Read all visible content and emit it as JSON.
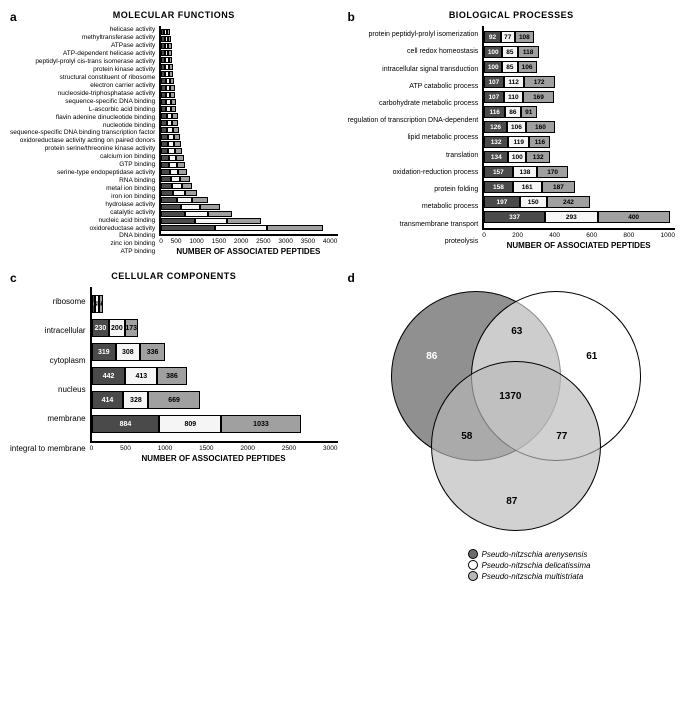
{
  "colors": {
    "s1": "#4a4a4a",
    "s2": "#f5f5f5",
    "s3": "#a0a0a0"
  },
  "panelA": {
    "label": "a",
    "title": "MOLECULAR FUNCTIONS",
    "xlabel": "NUMBER OF ASSOCIATED PEPTIDES",
    "xmax": 4000,
    "xticks": [
      0,
      500,
      1000,
      1500,
      2000,
      2500,
      3000,
      3500,
      4000
    ],
    "rows": [
      {
        "label": "helicase activity",
        "v": [
          80,
          70,
          80
        ]
      },
      {
        "label": "methyltransferase activity",
        "v": [
          85,
          75,
          85
        ]
      },
      {
        "label": "ATPase activity",
        "v": [
          90,
          80,
          90
        ]
      },
      {
        "label": "ATP-dependent helicase activity",
        "v": [
          95,
          85,
          95
        ]
      },
      {
        "label": "peptidyl-prolyl cis-trans isomerase activity",
        "v": [
          95,
          90,
          95
        ]
      },
      {
        "label": "protein kinase activity",
        "v": [
          100,
          90,
          100
        ]
      },
      {
        "label": "structural constituent of ribosome",
        "v": [
          100,
          95,
          100
        ]
      },
      {
        "label": "electron carrier activity",
        "v": [
          110,
          100,
          110
        ]
      },
      {
        "label": "nucleoside-triphosphatase activity",
        "v": [
          115,
          105,
          115
        ]
      },
      {
        "label": "sequence-specific DNA binding",
        "v": [
          120,
          110,
          120
        ]
      },
      {
        "label": "L-ascorbic acid binding",
        "v": [
          125,
          115,
          125
        ]
      },
      {
        "label": "flavin adenine dinucleotide binding",
        "v": [
          130,
          120,
          130
        ]
      },
      {
        "label": "nucleotide binding",
        "v": [
          140,
          130,
          140
        ]
      },
      {
        "label": "sequence-specific DNA binding transcription factor",
        "v": [
          145,
          135,
          145
        ]
      },
      {
        "label": "oxidoreductase activity  acting on paired donors",
        "v": [
          150,
          140,
          150
        ]
      },
      {
        "label": "protein serine/threonine kinase activity",
        "v": [
          160,
          150,
          160
        ]
      },
      {
        "label": "calcium ion binding",
        "v": [
          170,
          160,
          170
        ]
      },
      {
        "label": "GTP binding",
        "v": [
          180,
          170,
          180
        ]
      },
      {
        "label": "serine-type endopeptidase activity",
        "v": [
          190,
          180,
          190
        ]
      },
      {
        "label": "RNA binding",
        "v": [
          200,
          190,
          200
        ]
      },
      {
        "label": "metal ion binding",
        "v": [
          220,
          210,
          220
        ]
      },
      {
        "label": "iron ion binding",
        "v": [
          240,
          230,
          240
        ]
      },
      {
        "label": "hydrolase activity",
        "v": [
          260,
          250,
          260
        ]
      },
      {
        "label": "catalytic activity",
        "v": [
          300,
          290,
          300
        ]
      },
      {
        "label": "nucleic acid binding",
        "v": [
          400,
          380,
          400
        ]
      },
      {
        "label": "oxidoreductase activity",
        "v": [
          500,
          480,
          500
        ]
      },
      {
        "label": "DNA binding",
        "v": [
          600,
          580,
          600
        ]
      },
      {
        "label": "zinc ion binding",
        "v": [
          850,
          800,
          850
        ]
      },
      {
        "label": "ATP binding",
        "v": [
          1350,
          1300,
          1400
        ]
      }
    ]
  },
  "panelB": {
    "label": "b",
    "title": "BIOLOGICAL PROCESSES",
    "xlabel": "NUMBER OF ASSOCIATED PEPTIDES",
    "xmax": 1000,
    "xticks": [
      0,
      200,
      400,
      600,
      800,
      1000
    ],
    "rows": [
      {
        "label": "protein peptidyl-prolyl isomerization",
        "v": [
          92,
          77,
          108
        ]
      },
      {
        "label": "cell redox homeostasis",
        "v": [
          100,
          85,
          118
        ]
      },
      {
        "label": "intracellular signal transduction",
        "v": [
          100,
          85,
          106
        ]
      },
      {
        "label": "ATP catabolic process",
        "v": [
          107,
          112,
          172
        ]
      },
      {
        "label": "carbohydrate metabolic process",
        "v": [
          107,
          110,
          169
        ]
      },
      {
        "label": "regulation of transcription  DNA-dependent",
        "v": [
          116,
          86,
          91
        ]
      },
      {
        "label": "lipid metabolic process",
        "v": [
          126,
          106,
          160
        ]
      },
      {
        "label": "translation",
        "v": [
          132,
          119,
          116
        ]
      },
      {
        "label": "oxidation-reduction process",
        "v": [
          134,
          100,
          132
        ]
      },
      {
        "label": "protein folding",
        "v": [
          157,
          138,
          170
        ]
      },
      {
        "label": "metabolic process",
        "v": [
          158,
          161,
          187
        ]
      },
      {
        "label": "transmembrane transport",
        "v": [
          197,
          150,
          242
        ]
      },
      {
        "label": "proteolysis",
        "v": [
          337,
          293,
          400
        ]
      }
    ]
  },
  "panelC": {
    "label": "c",
    "title": "CELLULAR COMPONENTS",
    "xlabel": "NUMBER OF ASSOCIATED PEPTIDES",
    "xmax": 3000,
    "xticks": [
      0,
      500,
      1000,
      1500,
      2000,
      2500,
      3000
    ],
    "rows": [
      {
        "label": "ribosome",
        "v": [
          50,
          45,
          50
        ]
      },
      {
        "label": "intracellular",
        "v": [
          230,
          200,
          173
        ]
      },
      {
        "label": "cytoplasm",
        "v": [
          319,
          308,
          336
        ]
      },
      {
        "label": "nucleus",
        "v": [
          442,
          413,
          386
        ]
      },
      {
        "label": "membrane",
        "v": [
          414,
          328,
          669
        ]
      },
      {
        "label": "integral to membrane",
        "v": [
          884,
          809,
          1033
        ]
      }
    ]
  },
  "panelD": {
    "label": "d",
    "values": {
      "only1": 86,
      "only2": 61,
      "only3": 87,
      "i12": 63,
      "i13": 58,
      "i23": 77,
      "i123": 1370
    },
    "legend": [
      {
        "name": "Pseudo-nitzschia arenysensis",
        "color": "#6b6b6b"
      },
      {
        "name": "Pseudo-nitzschia delicatissima",
        "color": "#ffffff"
      },
      {
        "name": "Pseudo-nitzschia multistriata",
        "color": "#b8b8b8"
      }
    ]
  }
}
